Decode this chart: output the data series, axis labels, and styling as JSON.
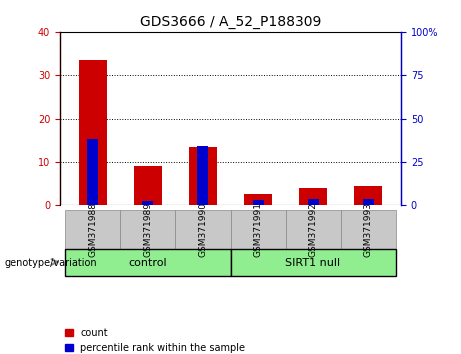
{
  "title": "GDS3666 / A_52_P188309",
  "samples": [
    "GSM371988",
    "GSM371989",
    "GSM371990",
    "GSM371991",
    "GSM371992",
    "GSM371993"
  ],
  "count_values": [
    33.5,
    9.0,
    13.5,
    2.5,
    4.0,
    4.5
  ],
  "percentile_values": [
    38.5,
    2.5,
    34.0,
    3.0,
    3.8,
    3.8
  ],
  "left_ylim": [
    0,
    40
  ],
  "right_ylim": [
    0,
    100
  ],
  "left_yticks": [
    0,
    10,
    20,
    30,
    40
  ],
  "right_yticks": [
    0,
    25,
    50,
    75,
    100
  ],
  "groups": [
    {
      "label": "control",
      "indices": [
        0,
        1,
        2
      ],
      "color": "#90EE90"
    },
    {
      "label": "SIRT1 null",
      "indices": [
        3,
        4,
        5
      ],
      "color": "#90EE90"
    }
  ],
  "group_label_prefix": "genotype/variation",
  "bar_width": 0.5,
  "count_color": "#CC0000",
  "percentile_color": "#0000CC",
  "bg_color": "#C8C8C8",
  "plot_bg": "#FFFFFF",
  "legend_count_label": "count",
  "legend_percentile_label": "percentile rank within the sample",
  "left_ylabel_color": "#CC0000",
  "right_ylabel_color": "#0000CC",
  "tick_label_fontsize": 7,
  "title_fontsize": 10
}
